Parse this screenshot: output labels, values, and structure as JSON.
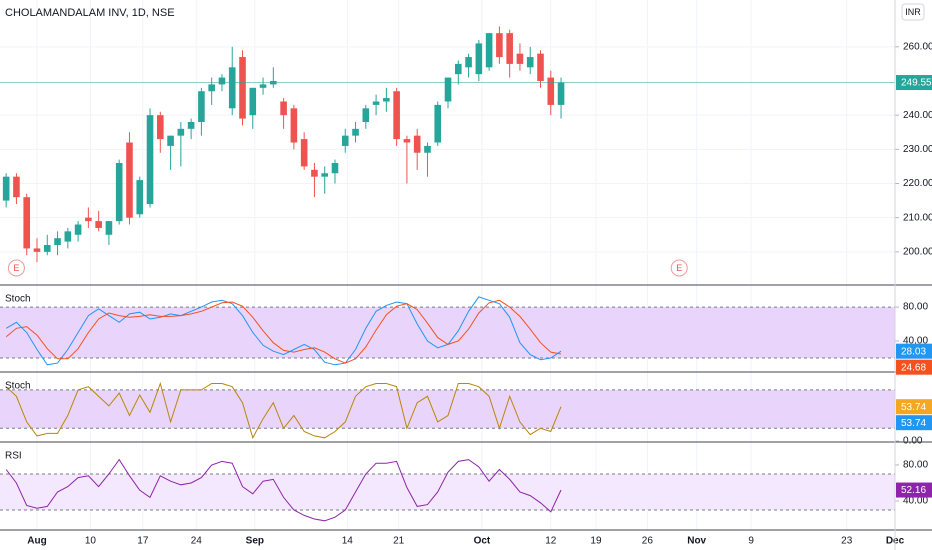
{
  "chart_data": [
    {
      "type": "candlestick",
      "title": "CHOLAMANDALAM INV, 1D, NSE",
      "currency": "INR",
      "x": [
        0,
        1,
        2,
        3,
        4,
        5,
        6,
        7,
        8,
        9,
        10,
        11,
        12,
        13,
        14,
        15,
        16,
        17,
        18,
        19,
        20,
        21,
        22,
        23,
        24,
        25,
        26,
        27,
        28,
        29,
        30,
        31,
        32,
        33,
        34,
        35,
        36,
        37,
        38,
        39,
        40,
        41,
        42,
        43,
        44,
        45,
        46,
        47,
        48,
        49,
        50,
        51,
        52,
        53,
        54
      ],
      "open": [
        215,
        222,
        216,
        201,
        200,
        202,
        203,
        205,
        210,
        209,
        205,
        209,
        232,
        211,
        214,
        240,
        231,
        234,
        236,
        238,
        247,
        249,
        242,
        257,
        240,
        248,
        249,
        244,
        242,
        233,
        224,
        222,
        223,
        231,
        234,
        238,
        243,
        244,
        247,
        233,
        234,
        229,
        232,
        244,
        252,
        254,
        252,
        254,
        264,
        264,
        258,
        254,
        258,
        251,
        243
      ],
      "high": [
        223,
        223,
        217,
        204,
        205,
        206,
        207,
        209,
        213,
        212,
        209,
        227,
        235,
        222,
        242,
        241,
        234,
        238,
        239,
        248,
        251,
        252,
        260,
        259,
        248,
        251,
        254,
        245,
        243,
        235,
        226,
        225,
        227,
        236,
        238,
        243,
        246,
        248,
        248,
        234,
        236,
        232,
        244,
        251,
        256,
        258,
        262,
        264,
        266,
        265,
        261,
        260,
        259,
        253,
        251
      ],
      "low": [
        213,
        214,
        199,
        197,
        199,
        199,
        201,
        203,
        207,
        206,
        202,
        208,
        208,
        210,
        213,
        229,
        224,
        225,
        233,
        234,
        243,
        247,
        240,
        237,
        236,
        246,
        248,
        236,
        230,
        224,
        216,
        217,
        220,
        229,
        232,
        236,
        240,
        241,
        231,
        220,
        224,
        222,
        231,
        242,
        249,
        251,
        250,
        253,
        255,
        251,
        253,
        252,
        248,
        240,
        239
      ],
      "close": [
        222,
        216,
        201,
        200,
        202,
        204,
        206,
        208,
        209,
        207,
        209,
        226,
        210,
        221,
        240,
        233,
        234,
        236,
        238,
        247,
        249,
        251,
        254,
        239,
        248,
        249,
        250,
        240,
        232,
        225,
        222,
        223,
        226,
        234,
        236,
        242,
        244,
        245,
        233,
        232,
        229,
        231,
        243,
        251,
        255,
        257,
        261,
        264,
        257,
        255,
        255,
        257,
        250,
        243,
        249.55
      ],
      "up_color": "#26a69a",
      "down_color": "#ef5350",
      "xlim": [
        -0.6,
        86.5
      ],
      "xticks": [
        {
          "value": 3,
          "label": "Aug"
        },
        {
          "value": 8.2,
          "label": "10"
        },
        {
          "value": 13.3,
          "label": "17"
        },
        {
          "value": 18.5,
          "label": "24"
        },
        {
          "value": 24.2,
          "label": "Sep"
        },
        {
          "value": 33.2,
          "label": "14"
        },
        {
          "value": 38.2,
          "label": "21"
        },
        {
          "value": 46.3,
          "label": "Oct"
        },
        {
          "value": 53,
          "label": "12"
        },
        {
          "value": 57.4,
          "label": "19"
        },
        {
          "value": 62.4,
          "label": "26"
        },
        {
          "value": 67.2,
          "label": "Nov"
        },
        {
          "value": 72.5,
          "label": "9"
        },
        {
          "value": 81.8,
          "label": "23"
        },
        {
          "value": 86.5,
          "label": "Dec"
        }
      ],
      "ylim": [
        190.3,
        273.7
      ],
      "yticks": [
        {
          "value": 260,
          "label": "260.00"
        },
        {
          "value": 240,
          "label": "240.00"
        },
        {
          "value": 230,
          "label": "230.00"
        },
        {
          "value": 220,
          "label": "220.00"
        },
        {
          "value": 210,
          "label": "210.00"
        },
        {
          "value": 200,
          "label": "200.00"
        }
      ],
      "events": [
        {
          "label": "E",
          "x": 1
        },
        {
          "label": "E",
          "x": 65.5
        }
      ],
      "grid": true
    },
    {
      "type": "line",
      "title": "Stoch",
      "ylim": [
        3.5,
        106
      ],
      "yticks": [
        {
          "value": 80,
          "label": "80.00"
        },
        {
          "value": 40,
          "label": "40.00"
        }
      ],
      "bands": [
        20,
        80
      ],
      "band_color": "#e9d5fb",
      "series": [
        {
          "color": "#2196f3",
          "values": [
            55,
            62,
            50,
            30,
            12,
            14,
            30,
            50,
            70,
            78,
            70,
            62,
            72,
            74,
            66,
            68,
            72,
            70,
            75,
            80,
            86,
            88,
            84,
            70,
            50,
            35,
            28,
            24,
            30,
            36,
            30,
            15,
            12,
            14,
            30,
            55,
            75,
            82,
            86,
            84,
            60,
            40,
            32,
            36,
            52,
            75,
            92,
            88,
            84,
            68,
            38,
            24,
            18,
            20,
            28.03
          ]
        },
        {
          "color": "#f4511e",
          "values": [
            45,
            55,
            57,
            47,
            31,
            19,
            19,
            31,
            50,
            66,
            73,
            70,
            68,
            69,
            71,
            69,
            69,
            70,
            72,
            75,
            80,
            85,
            86,
            81,
            68,
            52,
            38,
            29,
            27,
            30,
            32,
            27,
            19,
            14,
            19,
            33,
            53,
            71,
            81,
            84,
            77,
            61,
            44,
            36,
            40,
            54,
            73,
            85,
            88,
            80,
            69,
            54,
            38,
            27,
            24.68
          ]
        }
      ]
    },
    {
      "type": "line",
      "title": "Stoch",
      "ylim": [
        -1.5,
        108
      ],
      "yticks": [
        {
          "value": 0,
          "label": "0.00"
        }
      ],
      "bands": [
        20,
        80
      ],
      "band_color": "#e9d5fb",
      "series": [
        {
          "color": "#b8860b",
          "values": [
            85,
            70,
            30,
            8,
            12,
            12,
            40,
            80,
            85,
            70,
            55,
            75,
            40,
            72,
            45,
            90,
            30,
            80,
            80,
            80,
            90,
            90,
            85,
            60,
            5,
            35,
            60,
            20,
            40,
            15,
            8,
            5,
            15,
            30,
            70,
            85,
            90,
            90,
            85,
            20,
            60,
            70,
            30,
            40,
            90,
            90,
            85,
            70,
            20,
            70,
            30,
            10,
            20,
            15,
            53.74
          ]
        }
      ],
      "value_box_colors": [
        "#f5a623",
        "#2196f3"
      ]
    },
    {
      "type": "line",
      "title": "RSI",
      "ylim": [
        7.8,
        105.5
      ],
      "yticks": [
        {
          "value": 80,
          "label": "80.00"
        },
        {
          "value": 40,
          "label": "40.00"
        }
      ],
      "bands": [
        30,
        70
      ],
      "band_color": "#f3e8fd",
      "series": [
        {
          "color": "#8e24aa",
          "values": [
            75,
            60,
            35,
            32,
            34,
            50,
            56,
            66,
            68,
            56,
            70,
            86,
            68,
            52,
            44,
            68,
            62,
            58,
            60,
            66,
            80,
            84,
            82,
            56,
            48,
            62,
            64,
            44,
            30,
            24,
            20,
            18,
            22,
            30,
            50,
            70,
            82,
            82,
            84,
            55,
            34,
            36,
            50,
            72,
            84,
            86,
            78,
            62,
            75,
            64,
            50,
            46,
            38,
            28,
            52.16
          ]
        }
      ]
    }
  ]
}
